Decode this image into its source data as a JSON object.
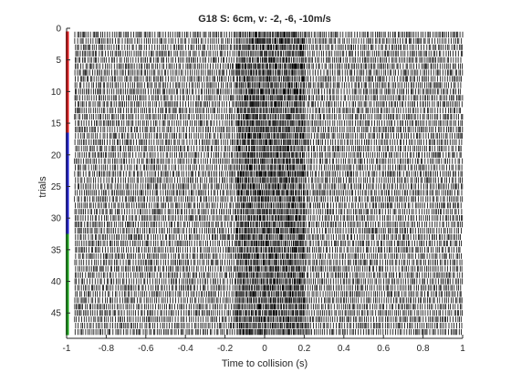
{
  "chart_data": {
    "type": "raster",
    "title": "G18 S: 6cm, v: -2, -6, -10m/s",
    "xlabel": "Time to collision (s)",
    "ylabel": "trials",
    "xlim": [
      -1,
      1
    ],
    "ylim": [
      0,
      49
    ],
    "y_reversed": true,
    "x_ticks": [
      -1,
      -0.8,
      -0.6,
      -0.4,
      -0.2,
      0,
      0.2,
      0.4,
      0.6,
      0.8,
      1
    ],
    "x_tick_labels": [
      "-1",
      "-0.8",
      "-0.6",
      "-0.4",
      "-0.2",
      "0",
      "0.2",
      "0.4",
      "0.6",
      "0.8",
      "1"
    ],
    "y_ticks": [
      0,
      5,
      10,
      15,
      20,
      25,
      30,
      35,
      40,
      45
    ],
    "y_tick_labels": [
      "0",
      "5",
      "10",
      "15",
      "20",
      "25",
      "30",
      "35",
      "40",
      "45"
    ],
    "n_trials": 48,
    "spike_window": [
      -0.96,
      1.0
    ],
    "conditions": [
      {
        "trials": [
          1,
          16
        ],
        "color": "#e41a1c"
      },
      {
        "trials": [
          17,
          32
        ],
        "color": "#1f1fd6"
      },
      {
        "trials": [
          33,
          48
        ],
        "color": "#1aa61a"
      }
    ],
    "spike_color": "#000000",
    "grid": false
  }
}
